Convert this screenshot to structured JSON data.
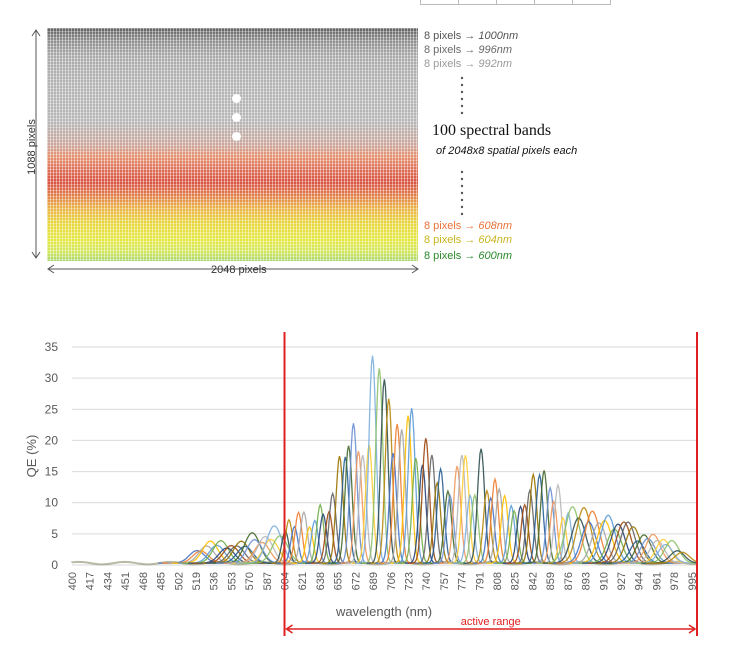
{
  "sensor": {
    "height_label": "1088 pixels",
    "width_label": "2048 pixels",
    "bands_title": "100 spectral bands",
    "bands_subtitle": "of 2048x8 spatial pixels each",
    "top_labels": [
      {
        "prefix": "8 pixels →",
        "wl": "1000nm",
        "color": "#555555"
      },
      {
        "prefix": "8 pixels →",
        "wl": "996nm",
        "color": "#6a6a6a"
      },
      {
        "prefix": "8 pixels →",
        "wl": "992nm",
        "color": "#9a9a9a"
      }
    ],
    "bottom_labels": [
      {
        "prefix": "8 pixels →",
        "wl": "608nm",
        "color": "#e8733a"
      },
      {
        "prefix": "8 pixels →",
        "wl": "604nm",
        "color": "#c9b520"
      },
      {
        "prefix": "8 pixels →",
        "wl": "600nm",
        "color": "#2c8a2c"
      }
    ]
  },
  "chart_data": {
    "type": "line",
    "ylabel": "QE (%)",
    "xlabel": "wavelength (nm)",
    "ylim": [
      0,
      35
    ],
    "yticks": [
      0,
      5,
      10,
      15,
      20,
      25,
      30,
      35
    ],
    "xticks": [
      "400",
      "417",
      "434",
      "451",
      "468",
      "485",
      "502",
      "519",
      "536",
      "553",
      "570",
      "587",
      "604",
      "621",
      "638",
      "655",
      "672",
      "689",
      "706",
      "723",
      "740",
      "757",
      "774",
      "791",
      "808",
      "825",
      "842",
      "859",
      "876",
      "893",
      "910",
      "927",
      "944",
      "961",
      "978",
      "995"
    ],
    "xlim": [
      400,
      1000
    ],
    "grid": true,
    "active_range": {
      "label": "active range",
      "start": 604,
      "end": 1000,
      "color": "#e02020"
    },
    "series_envelope_peaks": [
      {
        "wl": 536,
        "qe": 3.8
      },
      {
        "wl": 560,
        "qe": 4.5
      },
      {
        "wl": 590,
        "qe": 5.5
      },
      {
        "wl": 612,
        "qe": 8.2
      },
      {
        "wl": 632,
        "qe": 9.0
      },
      {
        "wl": 650,
        "qe": 15.0
      },
      {
        "wl": 662,
        "qe": 24.5
      },
      {
        "wl": 676,
        "qe": 24.0
      },
      {
        "wl": 688,
        "qe": 33.3
      },
      {
        "wl": 696,
        "qe": 31.5
      },
      {
        "wl": 712,
        "qe": 31.5
      },
      {
        "wl": 735,
        "qe": 21.5
      },
      {
        "wl": 752,
        "qe": 16.5
      },
      {
        "wl": 792,
        "qe": 20.0
      },
      {
        "wl": 820,
        "qe": 15.0
      },
      {
        "wl": 848,
        "qe": 16.2
      },
      {
        "wl": 892,
        "qe": 9.2
      },
      {
        "wl": 960,
        "qe": 5.0
      },
      {
        "wl": 995,
        "qe": 2.0
      }
    ]
  }
}
